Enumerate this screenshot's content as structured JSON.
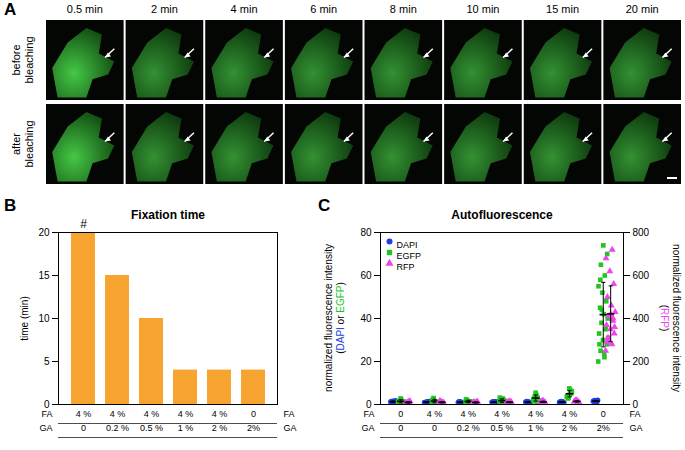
{
  "chart_data": [
    {
      "panel": "A",
      "type": "image_grid",
      "columns": [
        "0.5 min",
        "2 min",
        "4 min",
        "6 min",
        "8 min",
        "10 min",
        "15 min",
        "20 min"
      ],
      "rows": [
        "before bleaching",
        "after bleaching"
      ]
    },
    {
      "panel": "B",
      "type": "bar",
      "title": "Fixation time",
      "ylabel": "time (min)",
      "values": [
        20,
        15,
        10,
        4,
        4,
        4
      ],
      "color": "#f7a530",
      "ylim": [
        0,
        20
      ],
      "yticks": [
        0,
        5,
        10,
        15,
        20
      ],
      "annotations": [
        {
          "text": "#",
          "index": 0
        }
      ],
      "x_table": [
        {
          "name": "FA",
          "labels": [
            "4 %",
            "4 %",
            "4 %",
            "4 %",
            "4 %",
            "0"
          ]
        },
        {
          "name": "GA",
          "labels": [
            "0",
            "0.2 %",
            "0.5 %",
            "1 %",
            "2 %",
            "2%"
          ]
        }
      ]
    },
    {
      "panel": "C",
      "type": "scatter",
      "title": "Autofluorescence",
      "ylabel": "normalized fluorescence intensity (DAPI or EGFP)",
      "y2label": "normalized fluorescence intensity (RFP)",
      "ylim": [
        0,
        80
      ],
      "yticks": [
        0,
        20,
        40,
        60,
        80
      ],
      "y2lim": [
        0,
        800
      ],
      "y2ticks": [
        0,
        200,
        400,
        600,
        800
      ],
      "legend": "top-left",
      "x_table": [
        {
          "name": "FA",
          "labels": [
            "0",
            "4 %",
            "4 %",
            "4 %",
            "4 %",
            "4 %",
            "0"
          ]
        },
        {
          "name": "GA",
          "labels": [
            "0",
            "0",
            "0.2 %",
            "0.5 %",
            "1 %",
            "2 %",
            "2%"
          ]
        }
      ],
      "series": [
        {
          "name": "DAPI",
          "color": "#1f3fe0",
          "marker": "circle",
          "values": [
            [
              1.2,
              1.5,
              0.9,
              1.8,
              1.1,
              1.4,
              0.8,
              1.6
            ],
            [
              1.0,
              1.3,
              0.7,
              1.5,
              1.2,
              0.9,
              1.4,
              1.1
            ],
            [
              0.9,
              1.1,
              1.3,
              0.8,
              1.0,
              1.2,
              0.7,
              1.4
            ],
            [
              1.1,
              0.9,
              1.3,
              1.0,
              1.2,
              0.8,
              1.4,
              1.0
            ],
            [
              1.2,
              1.0,
              1.5,
              0.9,
              1.3,
              1.1,
              0.8,
              1.4
            ],
            [
              1.0,
              1.3,
              1.1,
              0.9,
              1.4,
              1.2,
              0.8,
              1.5
            ],
            [
              1.5,
              1.8,
              1.2,
              2.0,
              1.4,
              1.7,
              1.1,
              1.9
            ]
          ],
          "means": [
            1.3,
            1.1,
            1.05,
            1.1,
            1.15,
            1.15,
            1.6
          ],
          "errors": [
            0.35,
            0.27,
            0.25,
            0.2,
            0.25,
            0.25,
            0.3
          ]
        },
        {
          "name": "EGFP",
          "color": "#22c41f",
          "marker": "square",
          "values": [
            [
              1.0,
              2.2,
              0.8,
              1.5,
              2.8,
              1.2,
              0.6,
              1.9
            ],
            [
              0.8,
              1.5,
              2.6,
              1.1,
              0.6,
              1.9,
              1.3,
              3.0
            ],
            [
              1.2,
              0.9,
              2.0,
              1.5,
              0.7,
              2.4,
              1.1,
              1.7
            ],
            [
              1.5,
              2.8,
              1.0,
              2.2,
              0.9,
              3.2,
              1.8,
              1.3
            ],
            [
              2.0,
              4.5,
              1.5,
              3.2,
              5.5,
              2.6,
              1.2,
              3.8
            ],
            [
              3.5,
              6.8,
              2.8,
              5.2,
              7.5,
              4.0,
              5.8,
              3.2,
              6.2,
              4.6
            ],
            [
              20,
              22,
              25,
              28,
              30,
              33,
              35,
              38,
              40,
              42,
              45,
              48,
              52,
              55,
              60,
              65,
              70,
              74,
              28,
              36,
              44,
              31,
              24,
              58
            ]
          ],
          "means": [
            1.5,
            1.6,
            1.4,
            1.8,
            3.0,
            5.0,
            41.8
          ],
          "errors": [
            0.75,
            0.8,
            0.55,
            0.8,
            1.4,
            1.5,
            15
          ]
        },
        {
          "name": "RFP",
          "color": "#ee44ee",
          "marker": "triangle",
          "axis": "y2",
          "values": [
            [
              8,
              12,
              5,
              15,
              10,
              6,
              14,
              9
            ],
            [
              10,
              6,
              14,
              8,
              12,
              16,
              7,
              11
            ],
            [
              7,
              11,
              9,
              13,
              6,
              10,
              12,
              8
            ],
            [
              9,
              13,
              7,
              11,
              15,
              10,
              8,
              12
            ],
            [
              12,
              8,
              15,
              10,
              18,
              11,
              9,
              14
            ],
            [
              14,
              10,
              18,
              12,
              20,
              15,
              11,
              16
            ],
            [
              250,
              280,
              310,
              330,
              350,
              370,
              390,
              410,
              430,
              460,
              500,
              560,
              620,
              680,
              720,
              300,
              360,
              420,
              290,
              400
            ]
          ],
          "means": [
            10,
            10.5,
            9.5,
            10.6,
            12.1,
            14.5,
            421.5
          ],
          "errors": [
            3.5,
            3.3,
            2.4,
            2.6,
            3.2,
            3.5,
            130
          ]
        }
      ]
    }
  ]
}
